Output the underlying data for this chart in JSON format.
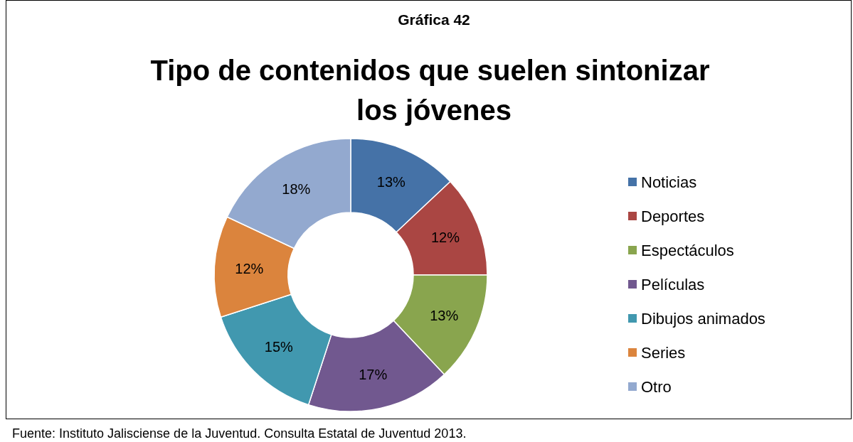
{
  "chart_data": {
    "type": "donut",
    "subtitle": "Gráfica 42",
    "title": "Tipo de contenidos que suelen sintonizar los jóvenes",
    "categories": [
      "Noticias",
      "Deportes",
      "Espectáculos",
      "Películas",
      "Dibujos animados",
      "Series",
      "Otro"
    ],
    "values": [
      13,
      12,
      13,
      17,
      15,
      12,
      18
    ],
    "colors": [
      "#4572a7",
      "#aa4643",
      "#89a54e",
      "#71588f",
      "#4198af",
      "#db843d",
      "#93a9cf"
    ],
    "value_labels": [
      "13%",
      "12%",
      "13%",
      "17%",
      "15%",
      "12%",
      "18%"
    ],
    "legend": "right",
    "annotations": [
      "Fuente: Instituto Jalisciense de la Juventud. Consulta Estatal de Juventud 2013."
    ]
  }
}
